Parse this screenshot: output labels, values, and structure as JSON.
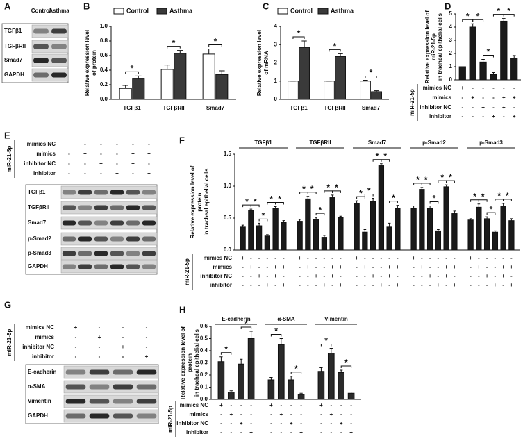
{
  "chart_data": [
    {
      "type": "bar",
      "panel": "B",
      "ylabel": [
        "Relative expression level",
        "of protein"
      ],
      "categories": [
        "TGFβ1",
        "TGFβRII",
        "Smad7"
      ],
      "series": [
        {
          "name": "Control",
          "color": "#ffffff",
          "values": [
            0.15,
            0.41,
            0.62
          ],
          "errors": [
            0.04,
            0.06,
            0.07
          ]
        },
        {
          "name": "Asthma",
          "color": "#3a3a3a",
          "values": [
            0.28,
            0.63,
            0.34
          ],
          "errors": [
            0.04,
            0.04,
            0.05
          ]
        }
      ],
      "ylim": [
        0,
        1.0
      ],
      "yticks": [
        {
          "value": 0,
          "label": "0.0"
        },
        {
          "value": 0.2,
          "label": "0.2"
        },
        {
          "value": 0.4,
          "label": "0.4"
        },
        {
          "value": 0.6,
          "label": "0.6"
        },
        {
          "value": 0.8,
          "label": "0.8"
        },
        {
          "value": 1.0,
          "label": "1.0"
        }
      ],
      "significance": [
        [
          {
            "pair": [
              0,
              1
            ],
            "label": "*"
          }
        ],
        [
          {
            "pair": [
              0,
              1
            ],
            "label": "*"
          }
        ],
        [
          {
            "pair": [
              0,
              1
            ],
            "label": "*"
          }
        ]
      ]
    },
    {
      "type": "bar",
      "panel": "C",
      "ylabel": [
        "Relative expression level",
        "of mRNA"
      ],
      "categories": [
        "TGFβ1",
        "TGFβRII",
        "Smad7"
      ],
      "series": [
        {
          "name": "Control",
          "color": "#ffffff",
          "values": [
            1,
            1,
            1
          ],
          "errors": [
            0,
            0,
            0.05
          ]
        },
        {
          "name": "Asthma",
          "color": "#3a3a3a",
          "values": [
            2.85,
            2.35,
            0.42
          ],
          "errors": [
            0.35,
            0.15,
            0.05
          ]
        }
      ],
      "ylim": [
        0,
        4
      ],
      "yticks": [
        0,
        1,
        2,
        3,
        4
      ],
      "significance": [
        [
          {
            "pair": [
              0,
              1
            ],
            "label": "*"
          }
        ],
        [
          {
            "pair": [
              0,
              1
            ],
            "label": "*"
          }
        ],
        [
          {
            "pair": [
              0,
              1
            ],
            "label": "*"
          }
        ]
      ]
    },
    {
      "type": "bar",
      "panel": "D",
      "ylabel": [
        "Relative expression level of",
        "miR-21-5p",
        "in tracheal epithelial cells"
      ],
      "categories": [
        null
      ],
      "series": [
        {
          "color": "#1a1a1a",
          "values": [
            1.0
          ],
          "errors": [
            0
          ]
        },
        {
          "color": "#1a1a1a",
          "values": [
            4.0
          ],
          "errors": [
            0.25
          ]
        },
        {
          "color": "#1a1a1a",
          "values": [
            1.35
          ],
          "errors": [
            0.2
          ]
        },
        {
          "color": "#1a1a1a",
          "values": [
            0.4
          ],
          "errors": [
            0.15
          ]
        },
        {
          "color": "#1a1a1a",
          "values": [
            4.45
          ],
          "errors": [
            0.2
          ]
        },
        {
          "color": "#1a1a1a",
          "values": [
            1.65
          ],
          "errors": [
            0.2
          ]
        }
      ],
      "ylim": [
        0,
        5
      ],
      "yticks": [
        0,
        1,
        2,
        3,
        4,
        5
      ],
      "significance": [
        [
          {
            "pair": [
              0,
              1
            ],
            "label": "*"
          },
          {
            "pair": [
              1,
              2
            ],
            "label": "*"
          },
          {
            "pair": [
              2,
              3
            ],
            "label": "*"
          },
          {
            "pair": [
              3,
              4
            ],
            "label": "*"
          },
          {
            "pair": [
              4,
              5
            ],
            "label": "*"
          }
        ]
      ],
      "conditions": {
        "title": "miR-21-5p",
        "rows": [
          "mimics NC",
          "mimics",
          "inhibitor NC",
          "inhibitor"
        ],
        "signs": [
          [
            "+",
            "-",
            "-",
            "-",
            "-",
            "-"
          ],
          [
            "-",
            "+",
            "-",
            "-",
            "+",
            "+"
          ],
          [
            "-",
            "-",
            "+",
            "-",
            "+",
            "-"
          ],
          [
            "-",
            "-",
            "-",
            "+",
            "-",
            "+"
          ]
        ]
      }
    },
    {
      "type": "bar",
      "panel": "F",
      "ylabel": [
        "Relative expression level of",
        "protein",
        "in tracheal epithelial cells"
      ],
      "categories": [
        "TGFβ1",
        "TGFβRII",
        "Smad7",
        "p-Smad2",
        "p-Smad3"
      ],
      "series": [
        {
          "color": "#1a1a1a",
          "values": [
            0.36,
            0.45,
            0.73,
            0.65,
            0.47
          ],
          "errors": [
            0.03,
            0.03,
            0.04,
            0.04,
            0.02
          ]
        },
        {
          "color": "#1a1a1a",
          "values": [
            0.62,
            0.8,
            0.28,
            0.95,
            0.67
          ],
          "errors": [
            0.02,
            0.04,
            0.04,
            0.03,
            0.05
          ]
        },
        {
          "color": "#1a1a1a",
          "values": [
            0.38,
            0.48,
            0.76,
            0.65,
            0.49
          ],
          "errors": [
            0.04,
            0.03,
            0.05,
            0.04,
            0.03
          ]
        },
        {
          "color": "#1a1a1a",
          "values": [
            0.22,
            0.2,
            1.32,
            0.3,
            0.28
          ],
          "errors": [
            0.02,
            0.03,
            0.03,
            0.02,
            0.02
          ]
        },
        {
          "color": "#1a1a1a",
          "values": [
            0.65,
            0.82,
            0.36,
            0.99,
            0.69
          ],
          "errors": [
            0.03,
            0.04,
            0.06,
            0.03,
            0.04
          ]
        },
        {
          "color": "#1a1a1a",
          "values": [
            0.43,
            0.51,
            0.65,
            0.57,
            0.46
          ],
          "errors": [
            0.03,
            0.02,
            0.05,
            0.04,
            0.03
          ]
        }
      ],
      "ylim": [
        0,
        1.5
      ],
      "yticks": [
        {
          "value": 0,
          "label": "0.0"
        },
        {
          "value": 0.5,
          "label": "0.5"
        },
        {
          "value": 1.0,
          "label": "1.0"
        },
        {
          "value": 1.5,
          "label": "1.5"
        }
      ],
      "significance": [
        [
          {
            "pair": [
              0,
              1
            ],
            "label": "*"
          },
          {
            "pair": [
              1,
              2
            ],
            "label": "*"
          },
          {
            "pair": [
              2,
              3
            ],
            "label": "*"
          },
          {
            "pair": [
              3,
              4
            ],
            "label": "*"
          },
          {
            "pair": [
              4,
              5
            ],
            "label": "*"
          }
        ],
        [
          {
            "pair": [
              0,
              1
            ],
            "label": "*"
          },
          {
            "pair": [
              1,
              2
            ],
            "label": "*"
          },
          {
            "pair": [
              2,
              3
            ],
            "label": "*"
          },
          {
            "pair": [
              3,
              4
            ],
            "label": "*"
          },
          {
            "pair": [
              4,
              5
            ],
            "label": "*"
          }
        ],
        [
          {
            "pair": [
              0,
              1
            ],
            "label": "*"
          },
          {
            "pair": [
              1,
              2
            ],
            "label": "*"
          },
          {
            "pair": [
              2,
              3
            ],
            "label": "*"
          },
          {
            "pair": [
              3,
              4
            ],
            "label": "*"
          },
          {
            "pair": [
              4,
              5
            ],
            "label": "*"
          }
        ],
        [
          {
            "pair": [
              0,
              1
            ],
            "label": "*"
          },
          {
            "pair": [
              1,
              2
            ],
            "label": "*"
          },
          {
            "pair": [
              2,
              3
            ],
            "label": "*"
          },
          {
            "pair": [
              3,
              4
            ],
            "label": "*"
          },
          {
            "pair": [
              4,
              5
            ],
            "label": "*"
          }
        ],
        [
          {
            "pair": [
              0,
              1
            ],
            "label": "*"
          },
          {
            "pair": [
              1,
              2
            ],
            "label": "*"
          },
          {
            "pair": [
              2,
              3
            ],
            "label": "*"
          },
          {
            "pair": [
              3,
              4
            ],
            "label": "*"
          },
          {
            "pair": [
              4,
              5
            ],
            "label": "*"
          }
        ]
      ],
      "conditions": {
        "title": "miR-21-5p",
        "rows": [
          "mimics NC",
          "mimics",
          "inhibitor NC",
          "inhibitor"
        ],
        "signs": [
          [
            "+",
            "-",
            "-",
            "-",
            "-",
            "-"
          ],
          [
            "-",
            "+",
            "-",
            "-",
            "+",
            "+"
          ],
          [
            "-",
            "-",
            "+",
            "-",
            "+",
            "-"
          ],
          [
            "-",
            "-",
            "-",
            "+",
            "-",
            "+"
          ]
        ]
      }
    },
    {
      "type": "bar",
      "panel": "H",
      "ylabel": [
        "Relative expression level of",
        "protein",
        "in tracheal epithelial cells"
      ],
      "categories": [
        "E-cadherin",
        "α-SMA",
        "Vimentin"
      ],
      "series": [
        {
          "color": "#2a2a2a",
          "values": [
            0.31,
            0.16,
            0.23
          ],
          "errors": [
            0.04,
            0.02,
            0.03
          ]
        },
        {
          "color": "#2a2a2a",
          "values": [
            0.06,
            0.45,
            0.38
          ],
          "errors": [
            0.01,
            0.05,
            0.04
          ]
        },
        {
          "color": "#2a2a2a",
          "values": [
            0.29,
            0.16,
            0.22
          ],
          "errors": [
            0.04,
            0.03,
            0.02
          ]
        },
        {
          "color": "#2a2a2a",
          "values": [
            0.5,
            0.04,
            0.05
          ],
          "errors": [
            0.06,
            0.01,
            0.01
          ]
        }
      ],
      "ylim": [
        0,
        0.6
      ],
      "yticks": [
        {
          "value": 0,
          "label": "0.0"
        },
        {
          "value": 0.1,
          "label": "0.1"
        },
        {
          "value": 0.2,
          "label": "0.2"
        },
        {
          "value": 0.3,
          "label": "0.3"
        },
        {
          "value": 0.4,
          "label": "0.4"
        },
        {
          "value": 0.5,
          "label": "0.5"
        },
        {
          "value": 0.6,
          "label": "0.6"
        }
      ],
      "significance": [
        [
          {
            "pair": [
              0,
              1
            ],
            "label": "*"
          },
          {
            "pair": [
              2,
              3
            ],
            "label": "*"
          }
        ],
        [
          {
            "pair": [
              0,
              1
            ],
            "label": "*"
          },
          {
            "pair": [
              2,
              3
            ],
            "label": "*"
          }
        ],
        [
          {
            "pair": [
              0,
              1
            ],
            "label": "*"
          },
          {
            "pair": [
              2,
              3
            ],
            "label": "*"
          }
        ]
      ],
      "conditions": {
        "title": "miR-21-5p",
        "rows": [
          "mimics NC",
          "mimics",
          "inhibitor NC",
          "inhibitor"
        ],
        "signs": [
          [
            "+",
            "-",
            "-",
            "-"
          ],
          [
            "-",
            "+",
            "-",
            "-"
          ],
          [
            "-",
            "-",
            "+",
            "-"
          ],
          [
            "-",
            "-",
            "-",
            "+"
          ]
        ]
      }
    }
  ],
  "blots": [
    {
      "panel": "A",
      "lanes": [
        "Control",
        "Asthma"
      ],
      "proteins": [
        "TGFβ1",
        "TGFβRII",
        "Smad7",
        "GAPDH"
      ]
    },
    {
      "panel": "E",
      "conditions": {
        "title": "miR-21-5p",
        "rows": [
          "mimics NC",
          "mimics",
          "inhibitor NC",
          "inhibitor"
        ],
        "signs": [
          [
            "+",
            "-",
            "-",
            "-",
            "-",
            "-"
          ],
          [
            "-",
            "+",
            "-",
            "-",
            "+",
            "+"
          ],
          [
            "-",
            "-",
            "+",
            "-",
            "+",
            "-"
          ],
          [
            "-",
            "-",
            "-",
            "+",
            "-",
            "+"
          ]
        ]
      },
      "proteins": [
        "TGFβ1",
        "TGFβRII",
        "Smad7",
        "p-Smad2",
        "p-Smad3",
        "GAPDH"
      ]
    },
    {
      "panel": "G",
      "conditions": {
        "title": "miR-21-5p",
        "rows": [
          "mimics NC",
          "mimics",
          "inhibitor NC",
          "inhibitor"
        ],
        "signs": [
          [
            "+",
            "-",
            "-",
            "-"
          ],
          [
            "-",
            "+",
            "-",
            "-"
          ],
          [
            "-",
            "-",
            "+",
            "-"
          ],
          [
            "-",
            "-",
            "-",
            "+"
          ]
        ]
      },
      "proteins": [
        "E-cadherin",
        "α-SMA",
        "Vimentin",
        "GAPDH"
      ]
    }
  ]
}
